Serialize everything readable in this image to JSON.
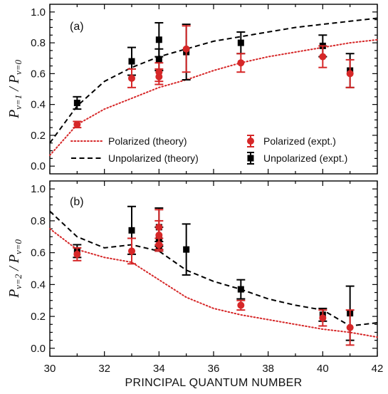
{
  "colors": {
    "polarized": "#d62728",
    "unpolarized": "#000000",
    "axis": "#000000"
  },
  "chart_data": [
    {
      "type": "line+scatter",
      "panel_label": "(a)",
      "ylabel_main": "P",
      "ylabel_num_sub": "ν=1",
      "ylabel_den_sub": "ν=0",
      "xlabel": "PRINCIPAL QUANTUM NUMBER",
      "xlim": [
        30,
        42
      ],
      "ylim": [
        -0.05,
        1.05
      ],
      "xticks": [
        30,
        32,
        34,
        36,
        38,
        40,
        42
      ],
      "yticks": [
        0.0,
        0.2,
        0.4,
        0.6,
        0.8,
        1.0
      ],
      "ytick_labels": [
        "0.0",
        "0.2",
        "0.4",
        "0.6",
        "0.8",
        "1.0"
      ],
      "legend": {
        "placement": "bottom",
        "entries": [
          {
            "label": "Polarized (theory)",
            "style": "dotted",
            "color": "polarized"
          },
          {
            "label": "Unpolarized (theory)",
            "style": "dashed",
            "color": "unpolarized"
          },
          {
            "label": "Polarized (expt.)",
            "marker": "circle",
            "color": "polarized"
          },
          {
            "label": "Unpolarized (expt.)",
            "marker": "square",
            "color": "unpolarized"
          }
        ]
      },
      "series": [
        {
          "name": "Polarized (theory)",
          "kind": "line",
          "style": "dotted",
          "color": "polarized",
          "x": [
            30,
            31,
            32,
            33,
            34,
            35,
            36,
            37,
            38,
            39,
            40,
            41,
            42
          ],
          "y": [
            0.07,
            0.27,
            0.37,
            0.44,
            0.51,
            0.56,
            0.62,
            0.67,
            0.71,
            0.74,
            0.77,
            0.8,
            0.82
          ]
        },
        {
          "name": "Unpolarized (theory)",
          "kind": "line",
          "style": "dashed",
          "color": "unpolarized",
          "x": [
            30,
            31,
            32,
            33,
            34,
            35,
            36,
            37,
            38,
            39,
            40,
            41,
            42
          ],
          "y": [
            0.15,
            0.39,
            0.55,
            0.64,
            0.71,
            0.76,
            0.81,
            0.84,
            0.87,
            0.9,
            0.92,
            0.94,
            0.96
          ]
        },
        {
          "name": "Polarized (expt.)",
          "kind": "points",
          "marker": "circle",
          "color": "polarized",
          "points": [
            {
              "x": 31,
              "y": 0.27,
              "err": 0.02
            },
            {
              "x": 33,
              "y": 0.57,
              "err": 0.06
            },
            {
              "x": 34,
              "y": 0.61,
              "err": 0.06
            },
            {
              "x": 34,
              "y": 0.58,
              "err": 0.05
            },
            {
              "x": 35,
              "y": 0.76,
              "err": 0.15
            },
            {
              "x": 37,
              "y": 0.67,
              "err": 0.06
            },
            {
              "x": 40,
              "y": 0.71,
              "err": 0.07
            },
            {
              "x": 41,
              "y": 0.6,
              "err": 0.09
            }
          ]
        },
        {
          "name": "Unpolarized (expt.)",
          "kind": "points",
          "marker": "square",
          "color": "unpolarized",
          "points": [
            {
              "x": 31,
              "y": 0.41,
              "err": 0.04
            },
            {
              "x": 33,
              "y": 0.68,
              "err": 0.09
            },
            {
              "x": 34,
              "y": 0.82,
              "err": 0.11
            },
            {
              "x": 34,
              "y": 0.69,
              "err": 0.07
            },
            {
              "x": 35,
              "y": 0.74,
              "err": 0.18
            },
            {
              "x": 37,
              "y": 0.8,
              "err": 0.07
            },
            {
              "x": 40,
              "y": 0.78,
              "err": 0.07
            },
            {
              "x": 41,
              "y": 0.62,
              "err": 0.11
            }
          ]
        }
      ]
    },
    {
      "type": "line+scatter",
      "panel_label": "(b)",
      "ylabel_main": "P",
      "ylabel_num_sub": "ν=2",
      "ylabel_den_sub": "ν=0",
      "xlabel": "PRINCIPAL QUANTUM NUMBER",
      "xlim": [
        30,
        42
      ],
      "ylim": [
        -0.05,
        1.05
      ],
      "xticks": [
        30,
        32,
        34,
        36,
        38,
        40,
        42
      ],
      "xtick_labels": [
        "30",
        "32",
        "34",
        "36",
        "38",
        "40",
        "42"
      ],
      "yticks": [
        0.0,
        0.2,
        0.4,
        0.6,
        0.8,
        1.0
      ],
      "ytick_labels": [
        "0.0",
        "0.2",
        "0.4",
        "0.6",
        "0.8",
        "1.0"
      ],
      "series": [
        {
          "name": "Polarized (theory)",
          "kind": "line",
          "style": "dotted",
          "color": "polarized",
          "x": [
            30,
            31,
            32,
            33,
            34,
            35,
            36,
            37,
            38,
            39,
            40,
            41,
            42
          ],
          "y": [
            0.75,
            0.62,
            0.57,
            0.54,
            0.43,
            0.32,
            0.25,
            0.21,
            0.18,
            0.15,
            0.12,
            0.1,
            0.07
          ]
        },
        {
          "name": "Unpolarized (theory)",
          "kind": "line",
          "style": "dashed",
          "color": "unpolarized",
          "x": [
            30,
            31,
            32,
            33,
            34,
            35,
            36,
            37,
            38,
            39,
            40,
            41,
            42
          ],
          "y": [
            0.86,
            0.7,
            0.63,
            0.65,
            0.61,
            0.49,
            0.42,
            0.37,
            0.31,
            0.27,
            0.24,
            0.14,
            0.16
          ]
        },
        {
          "name": "Polarized (expt.)",
          "kind": "points",
          "marker": "circle",
          "color": "polarized",
          "points": [
            {
              "x": 31,
              "y": 0.59,
              "err": 0.04
            },
            {
              "x": 33,
              "y": 0.61,
              "err": 0.08
            },
            {
              "x": 34,
              "y": 0.76,
              "err": 0.11
            },
            {
              "x": 34,
              "y": 0.71,
              "err": 0.09
            },
            {
              "x": 34,
              "y": 0.65,
              "err": 0.04
            },
            {
              "x": 37,
              "y": 0.27,
              "err": 0.03
            },
            {
              "x": 40,
              "y": 0.19,
              "err": 0.05
            },
            {
              "x": 41,
              "y": 0.13,
              "err": 0.11
            }
          ]
        },
        {
          "name": "Unpolarized (expt.)",
          "kind": "points",
          "marker": "square",
          "color": "unpolarized",
          "points": [
            {
              "x": 31,
              "y": 0.61,
              "err": 0.04
            },
            {
              "x": 33,
              "y": 0.74,
              "err": 0.15
            },
            {
              "x": 34,
              "y": 0.76,
              "err": 0.12
            },
            {
              "x": 34,
              "y": 0.69,
              "err": 0.07
            },
            {
              "x": 34,
              "y": 0.64,
              "err": 0.03
            },
            {
              "x": 35,
              "y": 0.62,
              "err": 0.16
            },
            {
              "x": 37,
              "y": 0.37,
              "err": 0.06
            },
            {
              "x": 40,
              "y": 0.21,
              "err": 0.04
            },
            {
              "x": 41,
              "y": 0.22,
              "err": 0.17
            }
          ]
        }
      ]
    }
  ]
}
